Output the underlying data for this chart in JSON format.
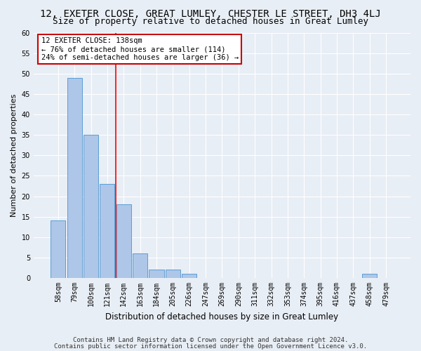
{
  "title": "12, EXETER CLOSE, GREAT LUMLEY, CHESTER LE STREET, DH3 4LJ",
  "subtitle": "Size of property relative to detached houses in Great Lumley",
  "xlabel": "Distribution of detached houses by size in Great Lumley",
  "ylabel": "Number of detached properties",
  "categories": [
    "58sqm",
    "79sqm",
    "100sqm",
    "121sqm",
    "142sqm",
    "163sqm",
    "184sqm",
    "205sqm",
    "226sqm",
    "247sqm",
    "269sqm",
    "290sqm",
    "311sqm",
    "332sqm",
    "353sqm",
    "374sqm",
    "395sqm",
    "416sqm",
    "437sqm",
    "458sqm",
    "479sqm"
  ],
  "values": [
    14,
    49,
    35,
    23,
    18,
    6,
    2,
    2,
    1,
    0,
    0,
    0,
    0,
    0,
    0,
    0,
    0,
    0,
    0,
    1,
    0
  ],
  "bar_color": "#aec6e8",
  "bar_edge_color": "#5a9fd4",
  "ylim": [
    0,
    60
  ],
  "yticks": [
    0,
    5,
    10,
    15,
    20,
    25,
    30,
    35,
    40,
    45,
    50,
    55,
    60
  ],
  "red_line_x": 3.5,
  "annotation_text": "12 EXETER CLOSE: 138sqm\n← 76% of detached houses are smaller (114)\n24% of semi-detached houses are larger (36) →",
  "annotation_box_color": "#ffffff",
  "annotation_box_edge": "#cc0000",
  "footer1": "Contains HM Land Registry data © Crown copyright and database right 2024.",
  "footer2": "Contains public sector information licensed under the Open Government Licence v3.0.",
  "background_color": "#e8eef5",
  "grid_color": "#ffffff",
  "title_fontsize": 10,
  "subtitle_fontsize": 9,
  "tick_fontsize": 7,
  "ylabel_fontsize": 8,
  "xlabel_fontsize": 8.5,
  "footer_fontsize": 6.5,
  "ann_fontsize": 7.5
}
